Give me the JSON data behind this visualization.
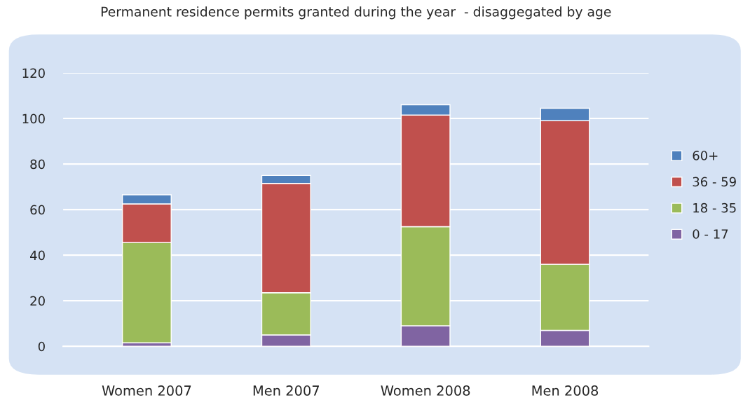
{
  "chart_data": {
    "type": "bar",
    "title": "Permanent residence permits granted during the year  - disaggegated by age",
    "categories": [
      "Women 2007",
      "Men 2007",
      "Women 2008",
      "Men 2008"
    ],
    "stacked": true,
    "series": [
      {
        "name": "0 - 17",
        "color": "#8064a2",
        "values": [
          1.5,
          5,
          9,
          7
        ]
      },
      {
        "name": "18 - 35",
        "color": "#9bbb59",
        "values": [
          44,
          18.5,
          43.5,
          29
        ]
      },
      {
        "name": "36 - 59",
        "color": "#c0504d",
        "values": [
          17,
          48,
          49,
          63
        ]
      },
      {
        "name": "60+",
        "color": "#4f81bd",
        "values": [
          4,
          3.5,
          4.5,
          5.5
        ]
      }
    ],
    "ylim": [
      0,
      120
    ],
    "yticks": [
      0,
      20,
      40,
      60,
      80,
      100,
      120
    ],
    "grid": "y",
    "legend": "right"
  }
}
